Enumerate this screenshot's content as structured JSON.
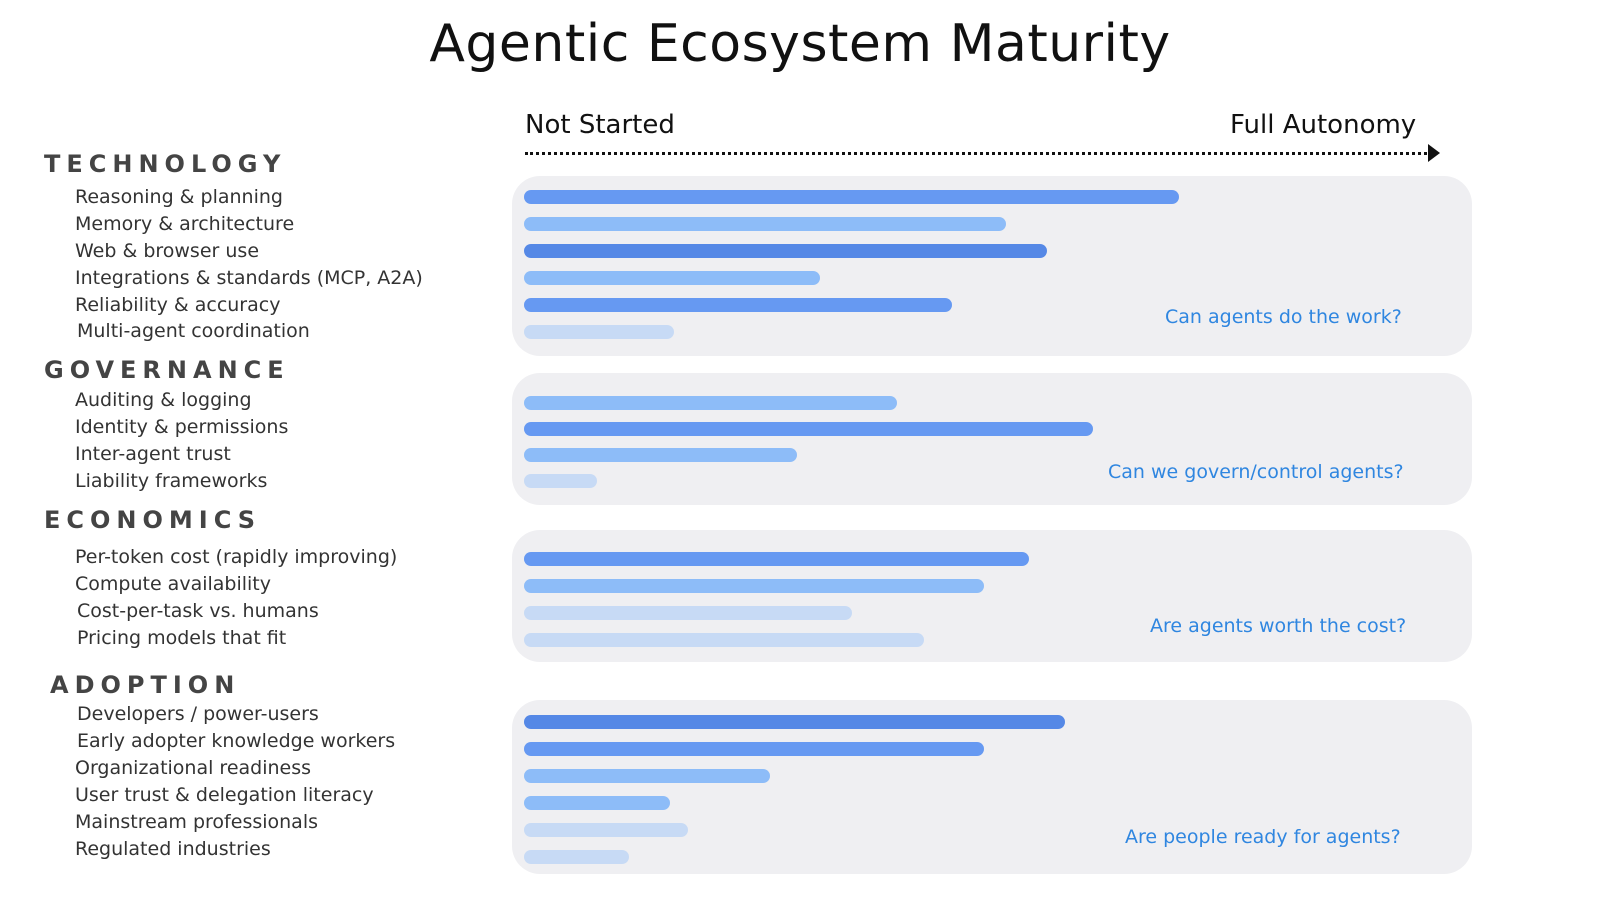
{
  "title": "Agentic Ecosystem Maturity",
  "axis": {
    "start_label": "Not Started",
    "end_label": "Full Autonomy"
  },
  "colors": {
    "level1": "#5588e6",
    "level2": "#6699f2",
    "level3": "#8dbcf8",
    "level4": "#c7daf5"
  },
  "chart_data": {
    "type": "bar",
    "orientation": "horizontal",
    "title": "Agentic Ecosystem Maturity",
    "xrange_labels": [
      "Not Started",
      "Full Autonomy"
    ],
    "xlim": [
      0,
      1
    ],
    "groups": [
      {
        "name": "TECHNOLOGY",
        "question": "Can agents do the work?",
        "categories": [
          "Reasoning & planning",
          "Memory & architecture",
          "Web & browser use",
          "Integrations & standards (MCP, A2A)",
          "Reliability & accuracy",
          "Multi-agent coordination"
        ],
        "values": [
          0.72,
          0.53,
          0.575,
          0.325,
          0.47,
          0.165
        ],
        "colors": [
          "#6699f2",
          "#8dbcf8",
          "#5588e6",
          "#8dbcf8",
          "#6699f2",
          "#c7daf5"
        ]
      },
      {
        "name": "GOVERNANCE",
        "question": "Can we govern/control agents?",
        "categories": [
          "Auditing & logging",
          "Identity & permissions",
          "Inter-agent trust",
          "Liability frameworks"
        ],
        "values": [
          0.41,
          0.625,
          0.3,
          0.08
        ],
        "colors": [
          "#8dbcf8",
          "#6699f2",
          "#8dbcf8",
          "#c7daf5"
        ]
      },
      {
        "name": "ECONOMICS",
        "question": "Are agents worth the cost?",
        "categories": [
          "Per-token cost (rapidly improving)",
          "Compute availability",
          "Cost-per-task vs. humans",
          "Pricing models that fit"
        ],
        "values": [
          0.555,
          0.505,
          0.36,
          0.44
        ],
        "colors": [
          "#6699f2",
          "#8dbcf8",
          "#c7daf5",
          "#c7daf5"
        ]
      },
      {
        "name": "ADOPTION",
        "question": "Are people ready for agents?",
        "categories": [
          "Developers / power-users",
          "Early adopter knowledge workers",
          "Organizational readiness",
          "User trust & delegation literacy",
          "Mainstream professionals",
          "Regulated industries"
        ],
        "values": [
          0.595,
          0.505,
          0.27,
          0.16,
          0.18,
          0.115
        ],
        "colors": [
          "#5588e6",
          "#6699f2",
          "#8dbcf8",
          "#8dbcf8",
          "#c7daf5",
          "#c7daf5"
        ]
      }
    ],
    "grid": false,
    "legend": "none"
  }
}
